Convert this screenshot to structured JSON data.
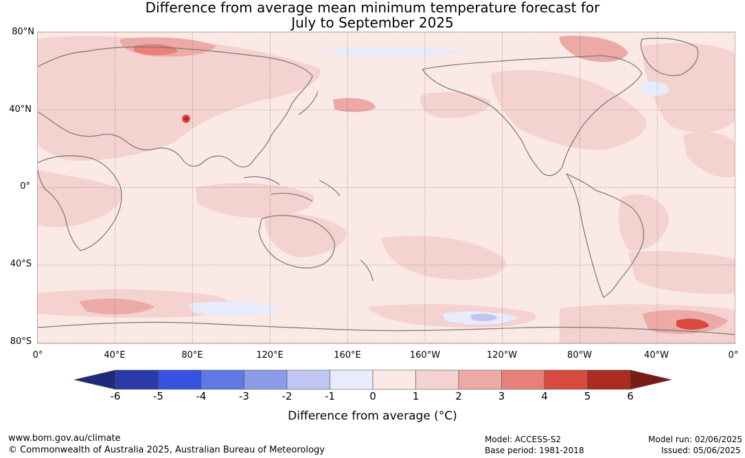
{
  "title": {
    "line1": "Difference from average mean minimum temperature forecast for",
    "line2": "July to September 2025"
  },
  "map": {
    "lat_labels": [
      "80°N",
      "40°N",
      "0°",
      "40°S",
      "80°S"
    ],
    "lon_labels": [
      "0°",
      "40°E",
      "80°E",
      "120°E",
      "160°E",
      "160°W",
      "120°W",
      "80°W",
      "40°W",
      "0°"
    ],
    "land_color": "#777777",
    "background_color": "#fbe9e6"
  },
  "colorbar": {
    "title": "Difference from average (°C)",
    "tick_labels": [
      "-6",
      "-5",
      "-4",
      "-3",
      "-2",
      "-1",
      "0",
      "1",
      "2",
      "3",
      "4",
      "5",
      "6"
    ],
    "low_extend_color": "#1d2b7a",
    "high_extend_color": "#7a1c16",
    "bin_colors": [
      "#2a3aa8",
      "#3552e0",
      "#5e78e6",
      "#8b9be8",
      "#bfc6f2",
      "#e8ebfa",
      "#fbe9e6",
      "#f4d2cf",
      "#ecaaa6",
      "#e78079",
      "#d84a40",
      "#a92b22"
    ]
  },
  "footer": {
    "url": "www.bom.gov.au/climate",
    "copyright": "© Commonwealth of Australia 2025, Australian Bureau of Meteorology",
    "model": "Model: ACCESS-S2",
    "base_period": "Base period: 1981-2018",
    "model_run": "Model run: 02/06/2025",
    "issued": "Issued: 05/06/2025"
  }
}
